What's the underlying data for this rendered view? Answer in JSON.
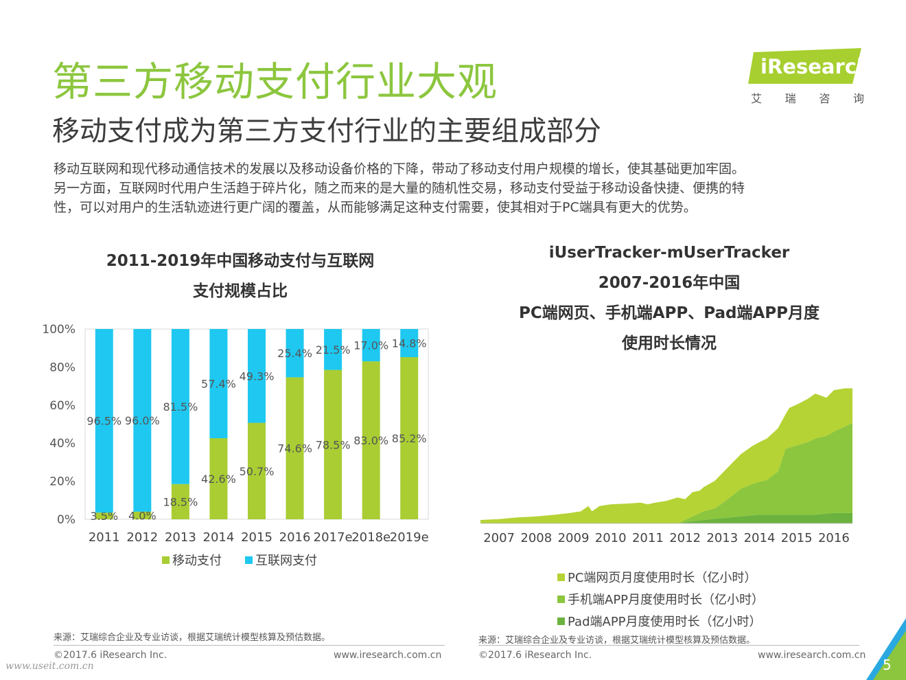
{
  "header": {
    "title": "第三方移动支付行业大观",
    "subtitle": "移动支付成为第三方支付行业的主要组成部分",
    "paragraph": [
      "移动互联网和现代移动通信技术的发展以及移动设备价格的下降，带动了移动支付用户规模的增长，使其基础更加牢固。",
      "另一方面，互联网时代用户生活趋于碎片化，随之而来的是大量的随机性交易，移动支付受益于移动设备快捷、便携的特",
      "性，可以对用户的生活轨迹进行更广阔的覆盖，从而能够满足这种支付需要，使其相对于PC端具有更大的优势。"
    ]
  },
  "logo": {
    "brand": "iResearch",
    "cn_chars": [
      "艾",
      "瑞",
      "咨",
      "询"
    ],
    "color": "#a6cf2f"
  },
  "chart_data": [
    {
      "type": "bar",
      "stacked": true,
      "title_lines": [
        "2011-2019年中国移动支付与互联网",
        "支付规模占比"
      ],
      "categories": [
        "2011",
        "2012",
        "2013",
        "2014",
        "2015",
        "2016",
        "2017e",
        "2018e",
        "2019e"
      ],
      "series": [
        {
          "name": "移动支付",
          "color": "#a9cd33",
          "values": [
            3.5,
            4.0,
            18.5,
            42.6,
            50.7,
            74.6,
            78.5,
            83.0,
            85.2
          ],
          "labels": [
            "3.5%",
            "4.0%",
            "18.5%",
            "42.6%",
            "50.7%",
            "74.6%",
            "78.5%",
            "83.0%",
            "85.2%"
          ]
        },
        {
          "name": "互联网支付",
          "color": "#1ec8f0",
          "values": [
            96.5,
            96.0,
            81.5,
            57.4,
            49.3,
            25.4,
            21.5,
            17.0,
            14.8
          ],
          "labels": [
            "96.5%",
            "96.0%",
            "81.5%",
            "57.4%",
            "49.3%",
            "25.4%",
            "21.5%",
            "17.0%",
            "14.8%"
          ]
        }
      ],
      "y_ticks": [
        "0%",
        "20%",
        "40%",
        "60%",
        "80%",
        "100%"
      ],
      "ylim": [
        0,
        100
      ],
      "legend": "bottom"
    },
    {
      "type": "area",
      "stacked": true,
      "title_lines": [
        "iUserTracker-mUserTracker",
        "2007-2016年中国",
        "PC端网页、手机端APP、Pad端APP月度",
        "使用时长情况"
      ],
      "x_ticks": [
        "2007",
        "2008",
        "2009",
        "2010",
        "2011",
        "2012",
        "2013",
        "2014",
        "2015",
        "2016"
      ],
      "x_range": [
        2007.0,
        2017.0
      ],
      "ylim": [
        0,
        100
      ],
      "y_axis_shown": false,
      "series": [
        {
          "name": "PC端网页月度使用时长（亿小时）",
          "color": "#b5d334",
          "points": [
            [
              2007.0,
              2
            ],
            [
              2007.5,
              2.5
            ],
            [
              2008.0,
              3.5
            ],
            [
              2008.5,
              4
            ],
            [
              2009.0,
              5
            ],
            [
              2009.4,
              6
            ],
            [
              2009.7,
              7
            ],
            [
              2009.9,
              10
            ],
            [
              2010.0,
              7
            ],
            [
              2010.2,
              10
            ],
            [
              2010.5,
              11
            ],
            [
              2011.0,
              11.5
            ],
            [
              2011.3,
              12
            ],
            [
              2011.5,
              11
            ],
            [
              2011.7,
              12
            ],
            [
              2012.0,
              13
            ],
            [
              2012.3,
              15
            ],
            [
              2012.5,
              12
            ],
            [
              2012.7,
              14
            ],
            [
              2012.9,
              13
            ],
            [
              2013.0,
              14
            ],
            [
              2013.3,
              16
            ],
            [
              2013.6,
              18
            ],
            [
              2014.0,
              20
            ],
            [
              2014.3,
              22
            ],
            [
              2014.7,
              24
            ],
            [
              2015.0,
              25
            ],
            [
              2015.2,
              20
            ],
            [
              2015.3,
              23
            ],
            [
              2015.6,
              24
            ],
            [
              2016.0,
              26
            ],
            [
              2016.3,
              22
            ],
            [
              2016.5,
              24
            ],
            [
              2016.8,
              22
            ],
            [
              2017.0,
              20
            ]
          ]
        },
        {
          "name": "手机端APP月度使用时长（亿小时）",
          "color": "#8cc63e",
          "points": [
            [
              2007.0,
              0
            ],
            [
              2012.3,
              0
            ],
            [
              2012.6,
              2
            ],
            [
              2013.0,
              5
            ],
            [
              2013.3,
              6
            ],
            [
              2013.6,
              10
            ],
            [
              2014.0,
              16
            ],
            [
              2014.3,
              18
            ],
            [
              2014.7,
              20
            ],
            [
              2015.0,
              25
            ],
            [
              2015.2,
              38
            ],
            [
              2015.5,
              40
            ],
            [
              2015.8,
              42
            ],
            [
              2016.0,
              44
            ],
            [
              2016.3,
              45
            ],
            [
              2016.6,
              48
            ],
            [
              2016.8,
              50
            ],
            [
              2017.0,
              52
            ]
          ]
        },
        {
          "name": "Pad端APP月度使用时长（亿小时）",
          "color": "#6bb33e",
          "points": [
            [
              2007.0,
              0
            ],
            [
              2012.3,
              0
            ],
            [
              2012.6,
              1
            ],
            [
              2013.0,
              2
            ],
            [
              2013.5,
              3
            ],
            [
              2014.0,
              4
            ],
            [
              2014.5,
              5
            ],
            [
              2015.0,
              5
            ],
            [
              2015.5,
              5
            ],
            [
              2016.0,
              5
            ],
            [
              2016.5,
              6
            ],
            [
              2017.0,
              6
            ]
          ]
        }
      ],
      "legend": "bottom"
    }
  ],
  "footer": {
    "source_left": "来源：艾瑞综合企业及专业访谈，根据艾瑞统计模型核算及预估数据。",
    "source_right": "来源：艾瑞综合企业及专业访谈，根据艾瑞统计模型核算及预估数据。",
    "copyright_left": "©2017.6 iResearch Inc.",
    "url_left": "www.iresearch.com.cn",
    "copyright_right": "©2017.6 iResearch Inc.",
    "url_right": "www.iresearch.com.cn",
    "page_number": "5",
    "watermark": "www.useit.com.cn",
    "accent_colors": [
      "#2aa8e0",
      "#8cc63e"
    ]
  }
}
